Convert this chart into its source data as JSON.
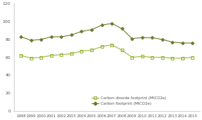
{
  "years": [
    1998,
    1999,
    2000,
    2001,
    2002,
    2003,
    2004,
    2005,
    2006,
    2007,
    2008,
    2009,
    2010,
    2011,
    2012,
    2013,
    2014,
    2015
  ],
  "carbon_footprint": [
    83,
    79,
    80,
    83,
    83,
    85,
    89,
    91,
    96,
    98,
    92,
    81,
    82,
    82,
    80,
    77,
    76,
    76
  ],
  "co2_footprint": [
    62,
    59,
    60,
    62,
    63,
    64,
    67,
    68,
    72,
    74,
    68,
    60,
    61,
    60,
    60,
    59,
    59,
    60
  ],
  "carbon_color": "#6b7a2a",
  "co2_color": "#9ab83a",
  "background": "#ffffff",
  "plot_bg": "#ffffff",
  "ylim": [
    0,
    120
  ],
  "yticks": [
    0,
    20,
    40,
    60,
    80,
    100,
    120
  ],
  "legend_co2": "Carbon dioxide footprint (MtCO2e)",
  "legend_carbon": "Carbon footprint (MtCO2e)",
  "tick_fontsize": 4.5,
  "legend_fontsize": 4.0
}
